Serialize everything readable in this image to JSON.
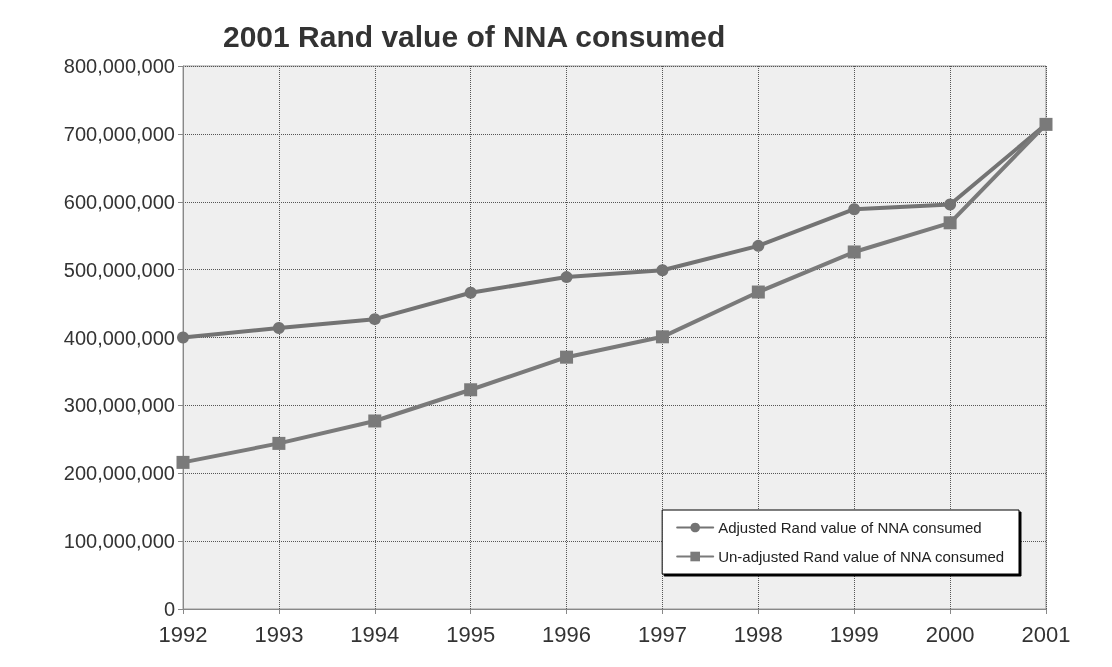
{
  "chart_data": {
    "type": "line",
    "title": "2001 Rand value of NNA consumed",
    "categories": [
      "1992",
      "1993",
      "1994",
      "1995",
      "1996",
      "1997",
      "1998",
      "1999",
      "2000",
      "2001"
    ],
    "series": [
      {
        "name": "Adjusted Rand value of NNA consumed",
        "color": "#737373",
        "marker": "circle",
        "values": [
          400000000,
          414000000,
          427000000,
          466000000,
          489000000,
          499000000,
          535000000,
          589000000,
          596000000,
          714000000
        ]
      },
      {
        "name": "Un-adjusted Rand value of NNA consumed",
        "color": "#7a7a7a",
        "marker": "square",
        "values": [
          216000000,
          244000000,
          277000000,
          323000000,
          371000000,
          401000000,
          467000000,
          526000000,
          569000000,
          714000000
        ]
      }
    ],
    "ylim": [
      0,
      800000000
    ],
    "yticks": [
      0,
      {
        "value": 100000000,
        "label": "100,000,000"
      },
      {
        "value": 200000000,
        "label": "200,000,000"
      },
      {
        "value": 300000000,
        "label": "300,000,000"
      },
      {
        "value": 400000000,
        "label": "400,000,000"
      },
      {
        "value": 500000000,
        "label": "500,000,000"
      },
      {
        "value": 600000000,
        "label": "600,000,000"
      },
      {
        "value": 700000000,
        "label": "700,000,000"
      },
      {
        "value": 800000000,
        "label": "800,000,000"
      }
    ],
    "grid": true,
    "legend": "bottom right",
    "line_style": "solid"
  }
}
